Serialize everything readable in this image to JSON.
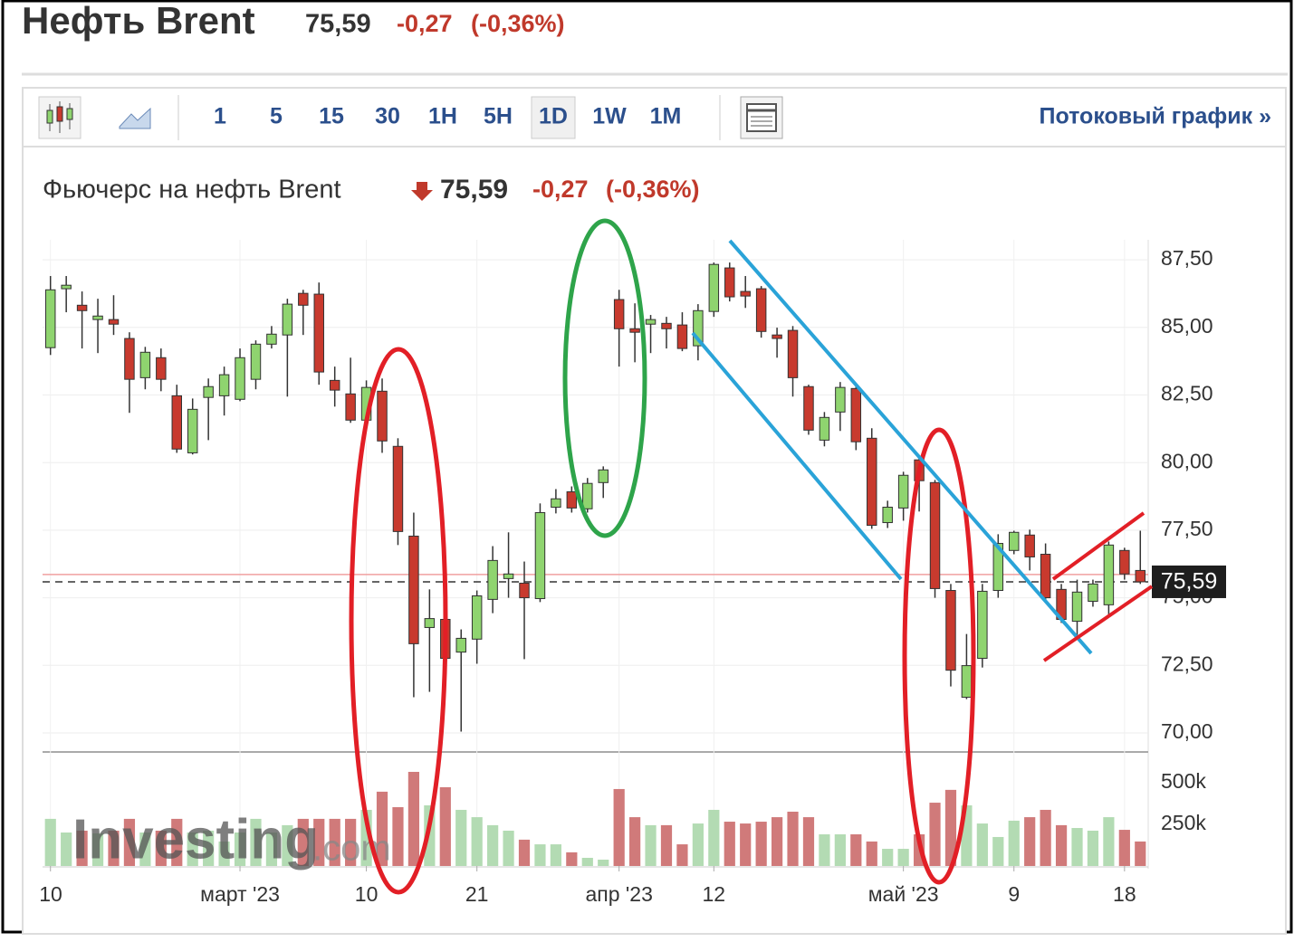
{
  "header": {
    "title": "Нефть Brent",
    "price": "75,59",
    "change": "-0,27",
    "change_pct": "(-0,36%)"
  },
  "toolbar": {
    "intervals": [
      "1",
      "5",
      "15",
      "30",
      "1H",
      "5H",
      "1D",
      "1W",
      "1M"
    ],
    "stream_link": "Потоковый график »"
  },
  "subheader": {
    "name": "Фьючерс на нефть Brent",
    "price": "75,59",
    "change": "-0,27",
    "change_pct": "(-0,36%)"
  },
  "watermark": {
    "brand": "Investing",
    "domain": ".com"
  },
  "chart_data": {
    "type": "candlestick",
    "categories": [
      "10",
      null,
      null,
      null,
      null,
      null,
      null,
      null,
      null,
      null,
      null,
      null,
      "март '23",
      null,
      null,
      null,
      null,
      null,
      null,
      null,
      "10",
      null,
      null,
      null,
      null,
      null,
      null,
      "21",
      null,
      null,
      null,
      null,
      null,
      null,
      null,
      null,
      "апр '23",
      null,
      null,
      null,
      null,
      null,
      "12",
      null,
      null,
      null,
      null,
      null,
      null,
      null,
      null,
      null,
      null,
      null,
      "май '23",
      null,
      null,
      null,
      null,
      null,
      null,
      "9",
      null,
      null,
      null,
      null,
      null,
      null,
      "18",
      null
    ],
    "open": [
      84.25,
      86.43,
      85.82,
      85.29,
      85.29,
      84.59,
      83.14,
      83.88,
      82.47,
      80.36,
      82.41,
      82.47,
      82.34,
      83.08,
      84.38,
      84.72,
      86.26,
      86.23,
      83.04,
      82.54,
      81.57,
      82.64,
      80.6,
      77.28,
      73.9,
      74.2,
      72.99,
      73.47,
      74.94,
      75.71,
      75.54,
      74.97,
      78.35,
      78.92,
      78.29,
      79.26,
      86.03,
      84.95,
      85.12,
      85.15,
      85.09,
      84.32,
      85.59,
      87.2,
      86.33,
      86.43,
      84.72,
      84.89,
      82.81,
      80.83,
      81.87,
      82.74,
      80.9,
      77.78,
      78.32,
      80.1,
      79.26,
      75.27,
      71.32,
      72.76,
      75.27,
      76.75,
      77.32,
      76.61,
      75.31,
      74.13,
      74.87,
      74.74,
      76.75,
      76.01
    ],
    "high": [
      86.9,
      86.9,
      86.33,
      86.06,
      86.19,
      84.82,
      84.28,
      84.22,
      82.88,
      82.37,
      83.11,
      83.55,
      84.22,
      84.52,
      85.05,
      86.06,
      86.39,
      86.66,
      83.55,
      83.88,
      83.04,
      83.11,
      80.9,
      78.15,
      75.31,
      74.5,
      73.83,
      75.27,
      76.91,
      77.42,
      76.34,
      78.49,
      79.02,
      79.12,
      79.43,
      79.86,
      86.39,
      85.89,
      85.46,
      85.39,
      85.56,
      85.86,
      87.4,
      87.4,
      86.9,
      86.53,
      84.99,
      85.05,
      82.88,
      81.87,
      82.98,
      82.91,
      81.27,
      78.59,
      79.66,
      80.2,
      79.36,
      75.51,
      73.66,
      75.51,
      77.35,
      77.48,
      77.52,
      77.01,
      75.51,
      75.67,
      75.67,
      77.08,
      76.85,
      77.48
    ],
    "low": [
      83.98,
      85.56,
      84.22,
      84.05,
      84.72,
      81.84,
      82.71,
      82.64,
      80.36,
      80.3,
      80.83,
      81.74,
      82.27,
      82.71,
      84.22,
      82.44,
      84.72,
      82.88,
      82.07,
      81.47,
      81.37,
      80.36,
      76.95,
      71.32,
      71.52,
      72.42,
      70.05,
      72.56,
      74.43,
      75.0,
      72.73,
      74.84,
      78.12,
      78.15,
      78.15,
      78.69,
      83.55,
      83.71,
      84.05,
      84.22,
      84.12,
      83.78,
      85.39,
      85.96,
      85.72,
      84.62,
      83.88,
      82.44,
      81.03,
      80.6,
      81.17,
      80.46,
      77.55,
      77.58,
      77.85,
      78.19,
      75.0,
      71.72,
      71.25,
      72.42,
      75.0,
      76.61,
      76.01,
      74.84,
      74.07,
      73.56,
      74.67,
      74.33,
      75.67,
      75.51
    ],
    "close": [
      86.39,
      86.56,
      85.62,
      85.42,
      85.12,
      83.08,
      84.08,
      83.08,
      80.5,
      81.97,
      82.81,
      83.25,
      83.88,
      84.38,
      84.75,
      85.86,
      85.82,
      83.35,
      82.68,
      81.57,
      82.78,
      80.8,
      77.45,
      73.3,
      74.23,
      72.76,
      73.5,
      75.07,
      76.38,
      75.88,
      75.0,
      78.15,
      78.66,
      78.32,
      79.23,
      79.73,
      84.95,
      84.82,
      85.29,
      84.95,
      84.22,
      85.62,
      87.33,
      86.13,
      86.16,
      84.85,
      84.59,
      83.14,
      81.2,
      81.67,
      82.78,
      80.77,
      77.68,
      78.35,
      79.53,
      79.33,
      75.34,
      72.32,
      72.49,
      75.24,
      77.01,
      77.42,
      76.51,
      75.0,
      74.2,
      75.21,
      75.51,
      76.95,
      75.88,
      75.59
    ],
    "volume": [
      283000,
      201000,
      212000,
      196000,
      212000,
      283000,
      201000,
      212000,
      283000,
      201000,
      212000,
      147000,
      201000,
      283000,
      201000,
      245000,
      283000,
      283000,
      283000,
      283000,
      337000,
      446000,
      353000,
      565000,
      364000,
      473000,
      337000,
      293000,
      245000,
      212000,
      158000,
      130000,
      130000,
      82000,
      49000,
      38000,
      462000,
      293000,
      245000,
      245000,
      130000,
      255000,
      337000,
      266000,
      255000,
      266000,
      293000,
      326000,
      293000,
      190000,
      190000,
      190000,
      147000,
      103000,
      103000,
      190000,
      380000,
      457000,
      364000,
      255000,
      174000,
      272000,
      293000,
      337000,
      245000,
      228000,
      212000,
      293000,
      217000,
      147000
    ],
    "ylim": [
      69.33,
      88.24
    ],
    "yticks": [
      {
        "value": 70,
        "label": "70,00"
      },
      {
        "value": 72.5,
        "label": "72,50"
      },
      {
        "value": 75,
        "label": "75,00"
      },
      {
        "value": 77.5,
        "label": "77,50"
      },
      {
        "value": 80,
        "label": "80,00"
      },
      {
        "value": 82.5,
        "label": "82,50"
      },
      {
        "value": 85,
        "label": "85,00"
      },
      {
        "value": 87.5,
        "label": "87,50"
      }
    ],
    "volume_ylim": [
      0,
      679000
    ],
    "volume_yticks": [
      {
        "value": 250000,
        "label": "250k"
      },
      {
        "value": 500000,
        "label": "500k"
      }
    ],
    "price_label": "75,59",
    "previous_close": 75.86,
    "up_color": "#8fd46f",
    "down_color": "#c83a2e",
    "up_volume_color": "#b3dbb3",
    "down_volume_color": "#d07a7a",
    "grid": true
  }
}
